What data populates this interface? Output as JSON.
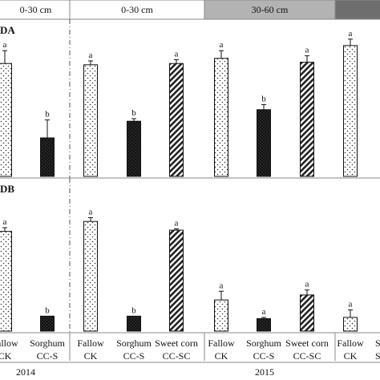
{
  "chart_data": {
    "type": "bar",
    "header_bands": [
      {
        "label": "0-30 cm",
        "color": "#ffffff"
      },
      {
        "label": "0-30 cm",
        "color": "#ffffff"
      },
      {
        "label": "30-60 cm",
        "color": "#b3b3b3"
      },
      {
        "label": "",
        "color": "#6e6e6e"
      }
    ],
    "panels": [
      {
        "title": "DA",
        "groups": [
          {
            "id": "g2014",
            "bars": [
              {
                "treatment": "Fallow",
                "code": "CK",
                "value": 88,
                "error": 10,
                "letter": "a",
                "pattern": "dots"
              },
              {
                "treatment": "Sorghum",
                "code": "CC-S",
                "value": 30,
                "error": 14,
                "letter": "b",
                "pattern": "solid"
              }
            ]
          },
          {
            "id": "g2015_030",
            "bars": [
              {
                "treatment": "Fallow",
                "code": "CK",
                "value": 87,
                "error": 3,
                "letter": "a",
                "pattern": "dots"
              },
              {
                "treatment": "Sorghum",
                "code": "CC-S",
                "value": 43,
                "error": 2,
                "letter": "b",
                "pattern": "solid"
              },
              {
                "treatment": "Sweet corn",
                "code": "CC-SC",
                "value": 88,
                "error": 3,
                "letter": "a",
                "pattern": "hatch"
              }
            ]
          },
          {
            "id": "g2015_3060",
            "bars": [
              {
                "treatment": "Fallow",
                "code": "CK",
                "value": 92,
                "error": 6,
                "letter": "a",
                "pattern": "dots"
              },
              {
                "treatment": "Sorghum",
                "code": "CC-S",
                "value": 52,
                "error": 4,
                "letter": "b",
                "pattern": "solid"
              },
              {
                "treatment": "Sweet corn",
                "code": "CC-SC",
                "value": 89,
                "error": 5,
                "letter": "a",
                "pattern": "hatch"
              }
            ]
          },
          {
            "id": "g2015_extra",
            "bars": [
              {
                "treatment": "Fallow",
                "code": "CK",
                "value": 102,
                "error": 5,
                "letter": "a",
                "pattern": "dots"
              }
            ]
          }
        ]
      },
      {
        "title": "DB",
        "groups": [
          {
            "id": "g2014",
            "bars": [
              {
                "treatment": "Fallow",
                "code": "CK",
                "value": 80,
                "error": 3,
                "letter": "a",
                "pattern": "dots"
              },
              {
                "treatment": "Sorghum",
                "code": "CC-S",
                "value": 12,
                "error": 0,
                "letter": "b",
                "pattern": "solid"
              }
            ]
          },
          {
            "id": "g2015_030",
            "bars": [
              {
                "treatment": "Fallow",
                "code": "CK",
                "value": 88,
                "error": 3,
                "letter": "a",
                "pattern": "dots"
              },
              {
                "treatment": "Sorghum",
                "code": "CC-S",
                "value": 12,
                "error": 0,
                "letter": "b",
                "pattern": "solid"
              },
              {
                "treatment": "Sweet corn",
                "code": "CC-SC",
                "value": 81,
                "error": 1,
                "letter": "a",
                "pattern": "hatch"
              }
            ]
          },
          {
            "id": "g2015_3060",
            "bars": [
              {
                "treatment": "Fallow",
                "code": "CK",
                "value": 25,
                "error": 7,
                "letter": "a",
                "pattern": "dots"
              },
              {
                "treatment": "Sorghum",
                "code": "CC-S",
                "value": 10,
                "error": 1,
                "letter": "a",
                "pattern": "solid"
              },
              {
                "treatment": "Sweet corn",
                "code": "CC-SC",
                "value": 29,
                "error": 4,
                "letter": "a",
                "pattern": "hatch"
              }
            ]
          },
          {
            "id": "g2015_extra",
            "bars": [
              {
                "treatment": "Fallow",
                "code": "CK",
                "value": 11,
                "error": 6,
                "letter": "a",
                "pattern": "dots"
              }
            ]
          }
        ]
      }
    ],
    "year_labels": [
      "2014",
      "2015"
    ],
    "clipped_tick_fragments": [
      {
        "panel": 0,
        "text": "CK"
      },
      {
        "panel": 1,
        "text": "S"
      },
      {
        "panel": 1,
        "text": "S"
      }
    ],
    "ylim": [
      0,
      110
    ],
    "grid": false,
    "colors": {
      "frame": "#888888",
      "ink": "#111111",
      "header_mid": "#b3b3b3",
      "header_dark": "#6e6e6e"
    }
  }
}
